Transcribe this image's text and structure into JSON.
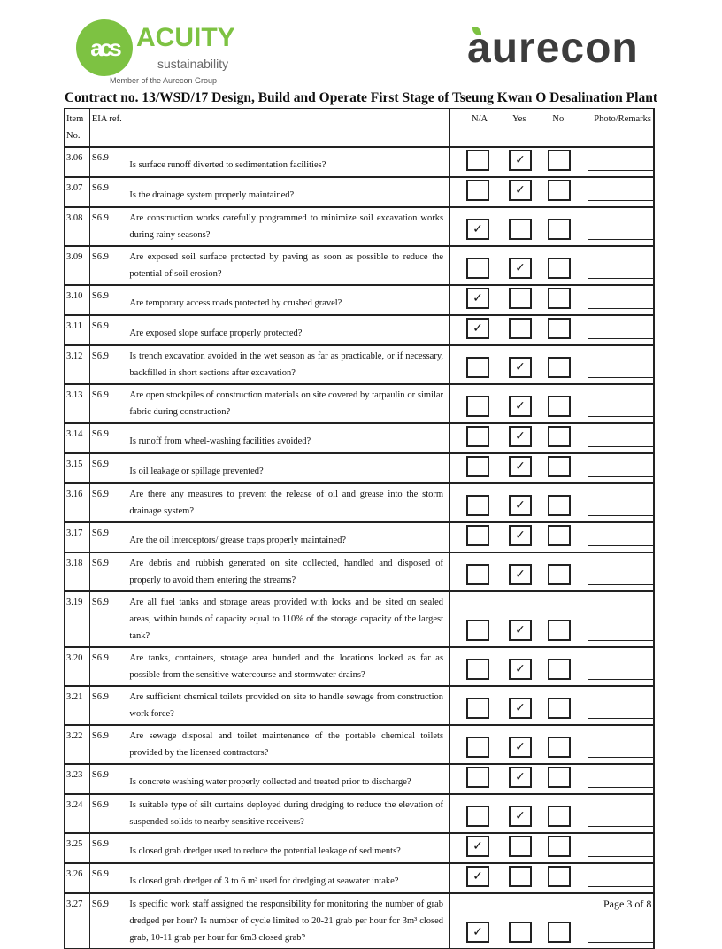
{
  "header": {
    "acuity_logo": "ACUITY",
    "acuity_sub": "sustainability",
    "acuity_mark": "acs",
    "member": "Member of the Aurecon Group",
    "aurecon_logo": "aurecon",
    "title": "Contract no.  13/WSD/17 Design, Build and Operate First Stage of Tseung Kwan O Desalination Plant"
  },
  "table": {
    "headers": {
      "item": "Item No.",
      "eia": "EIA ref.",
      "na": "N/A",
      "yes": "Yes",
      "no": "No",
      "remarks": "Photo/Remarks"
    },
    "rows": [
      {
        "item": "3.06",
        "eia": "S6.9",
        "question": "Is surface runoff diverted to sedimentation facilities?",
        "answer": "Yes"
      },
      {
        "item": "3.07",
        "eia": "S6.9",
        "question": "Is the drainage system properly maintained?",
        "answer": "Yes"
      },
      {
        "item": "3.08",
        "eia": "S6.9",
        "question": "Are construction works carefully programmed to minimize soil excavation works during rainy seasons?",
        "answer": "N/A"
      },
      {
        "item": "3.09",
        "eia": "S6.9",
        "question": "Are exposed soil surface protected by paving as soon as possible to reduce the potential of soil erosion?",
        "answer": "Yes"
      },
      {
        "item": "3.10",
        "eia": "S6.9",
        "question": "Are temporary access roads protected by crushed gravel?",
        "answer": "N/A"
      },
      {
        "item": "3.11",
        "eia": "S6.9",
        "question": "Are exposed slope surface properly protected?",
        "answer": "N/A"
      },
      {
        "item": "3.12",
        "eia": "S6.9",
        "question": "Is trench excavation avoided in the wet season as far as practicable, or if necessary, backfilled in short sections after excavation?",
        "answer": "Yes"
      },
      {
        "item": "3.13",
        "eia": "S6.9",
        "question": "Are open stockpiles of construction materials on site covered by tarpaulin or similar fabric during construction?",
        "answer": "Yes"
      },
      {
        "item": "3.14",
        "eia": "S6.9",
        "question": "Is runoff from wheel-washing facilities avoided?",
        "answer": "Yes"
      },
      {
        "item": "3.15",
        "eia": "S6.9",
        "question": "Is oil leakage or spillage prevented?",
        "answer": "Yes"
      },
      {
        "item": "3.16",
        "eia": "S6.9",
        "question": "Are there any measures to prevent the release of oil and grease into the storm drainage system?",
        "answer": "Yes"
      },
      {
        "item": "3.17",
        "eia": "S6.9",
        "question": "Are the oil interceptors/ grease traps properly maintained?",
        "answer": "Yes"
      },
      {
        "item": "3.18",
        "eia": "S6.9",
        "question": "Are debris and rubbish generated on site collected, handled and disposed of properly to avoid them entering the streams?",
        "answer": "Yes"
      },
      {
        "item": "3.19",
        "eia": "S6.9",
        "question": "Are all fuel tanks and storage areas provided with locks and be sited on sealed areas, within bunds of capacity equal to 110% of the storage capacity of the largest tank?",
        "answer": "Yes"
      },
      {
        "item": "3.20",
        "eia": "S6.9",
        "question": "Are tanks, containers, storage area bunded and the locations locked as far as possible from the sensitive watercourse and stormwater drains?",
        "answer": "Yes"
      },
      {
        "item": "3.21",
        "eia": "S6.9",
        "question": "Are sufficient chemical toilets provided on site to handle sewage from construction work force?",
        "answer": "Yes"
      },
      {
        "item": "3.22",
        "eia": "S6.9",
        "question": "Are sewage disposal and toilet maintenance of the portable chemical toilets provided by the licensed contractors?",
        "answer": "Yes"
      },
      {
        "item": "3.23",
        "eia": "S6.9",
        "question": "Is concrete washing water properly collected and treated prior to discharge?",
        "answer": "Yes"
      },
      {
        "item": "3.24",
        "eia": "S6.9",
        "question": "Is suitable type of silt curtains deployed during dredging to reduce the elevation of suspended solids to nearby sensitive receivers?",
        "answer": "Yes"
      },
      {
        "item": "3.25",
        "eia": "S6.9",
        "question": "Is closed grab dredger used to reduce the potential leakage of sediments?",
        "answer": "N/A"
      },
      {
        "item": "3.26",
        "eia": "S6.9",
        "question": "Is closed grab dredger of 3 to 6 m³ used for dredging at seawater intake?",
        "answer": "N/A"
      },
      {
        "item": "3.27",
        "eia": "S6.9",
        "question": "Is specific work staff assigned the responsibility for monitoring the number of grab dredged per hour? Is number of cycle limited to 20-21 grab per hour for 3m³ closed grab, 10-11 grab per hour for 6m3 closed grab?",
        "answer": "N/A"
      }
    ]
  },
  "check_glyph": "✓",
  "footer": {
    "page": "Page 3 of 8"
  }
}
